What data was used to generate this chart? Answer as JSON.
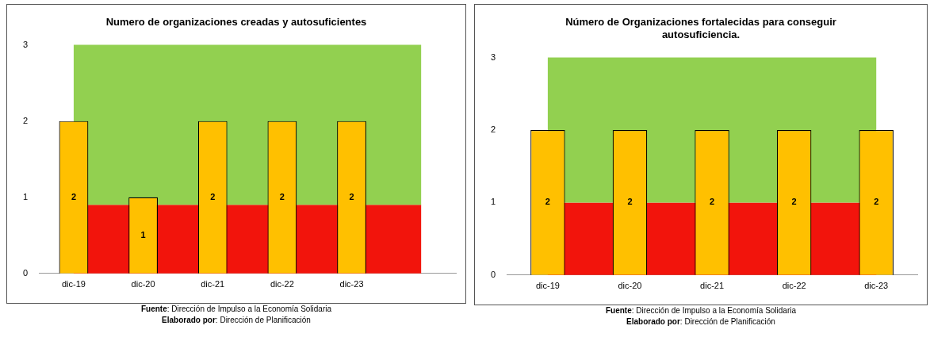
{
  "chart_data": [
    {
      "type": "bar",
      "title": "Numero de organizaciones creadas y autosuficientes",
      "categories": [
        "dic-19",
        "dic-20",
        "dic-21",
        "dic-22",
        "dic-23",
        null
      ],
      "values": [
        2,
        1,
        2,
        2,
        2,
        null
      ],
      "color": "#ffc000",
      "ylim": [
        0,
        3
      ],
      "yticks": [
        0,
        1,
        2,
        3
      ],
      "grid": false,
      "data_labels": true,
      "bands": [
        {
          "axis": "y",
          "from": 0,
          "to": 0.9,
          "color": "#f2140c"
        },
        {
          "axis": "y",
          "from": 0.9,
          "to": 3,
          "color": "#92d050"
        }
      ],
      "annotations": [
        "Fuente: Dirección de Impulso a la Economía Solidaria",
        "Elaborado por: Dirección de Planificación"
      ]
    },
    {
      "type": "bar",
      "title": "Número de Organizaciones fortalecidas para conseguir autosuficiencia.",
      "categories": [
        "dic-19",
        "dic-20",
        "dic-21",
        "dic-22",
        "dic-23"
      ],
      "values": [
        2,
        2,
        2,
        2,
        2
      ],
      "color": "#ffc000",
      "ylim": [
        0,
        3
      ],
      "yticks": [
        0,
        1,
        2,
        3
      ],
      "grid": false,
      "data_labels": true,
      "bands": [
        {
          "axis": "y",
          "from": 0,
          "to": 1,
          "color": "#f2140c"
        },
        {
          "axis": "y",
          "from": 1,
          "to": 3,
          "color": "#92d050"
        }
      ],
      "annotations": [
        "Fuente: Dirección de Impulso a la Economía Solidaria",
        "Elaborado por: Dirección de Planificación"
      ]
    }
  ]
}
